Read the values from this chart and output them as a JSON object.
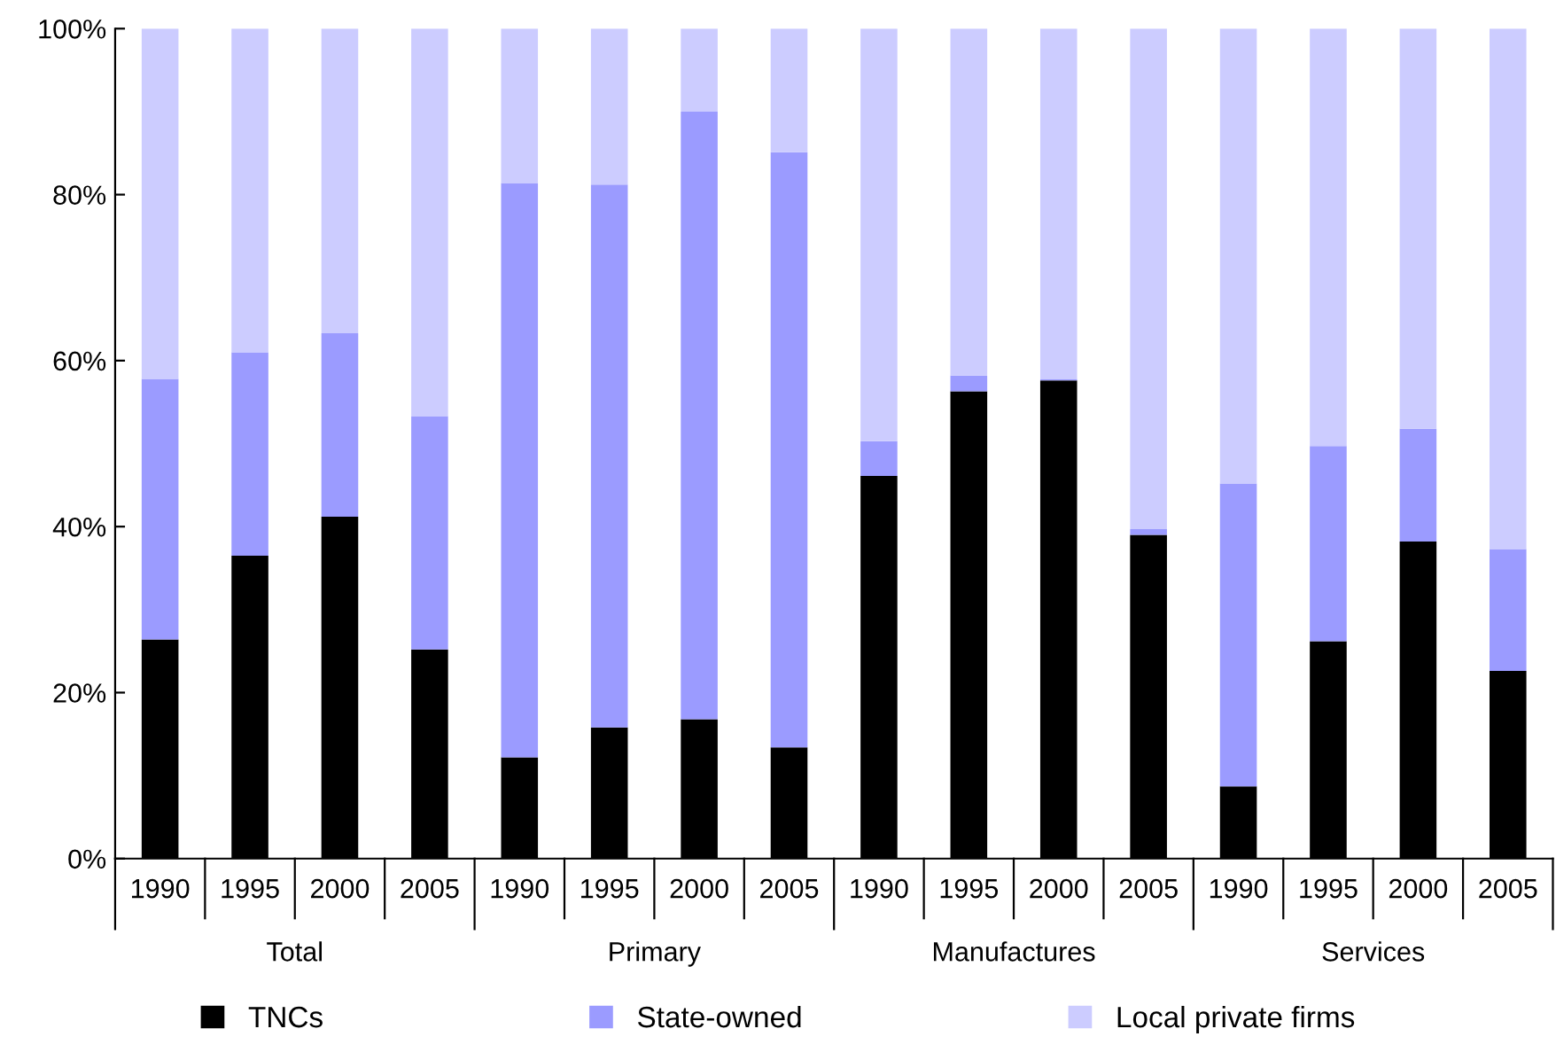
{
  "chart_data": {
    "type": "bar",
    "stacked": true,
    "categories": [
      "1990",
      "1995",
      "2000",
      "2005",
      "1990",
      "1995",
      "2000",
      "2005",
      "1990",
      "1995",
      "2000",
      "2005",
      "1990",
      "1995",
      "2000",
      "2005"
    ],
    "series": [
      {
        "name": "TNCs",
        "color": "#000000",
        "values": [
          26.4,
          36.5,
          41.2,
          25.2,
          12.2,
          15.8,
          16.8,
          13.4,
          46.1,
          56.3,
          57.6,
          39.0,
          8.7,
          26.2,
          38.2,
          22.6
        ]
      },
      {
        "name": "State-owned",
        "color": "#9b9bff",
        "values": [
          31.4,
          24.5,
          22.1,
          28.1,
          69.2,
          65.4,
          73.2,
          71.7,
          4.2,
          1.9,
          0.2,
          0.7,
          36.5,
          23.5,
          13.6,
          14.7
        ]
      },
      {
        "name": "Local private firms",
        "color": "#ccccff",
        "values": [
          42.2,
          39.0,
          36.7,
          46.7,
          18.6,
          18.8,
          10.0,
          14.9,
          49.7,
          41.8,
          42.2,
          60.3,
          54.8,
          50.3,
          48.2,
          62.7
        ]
      }
    ],
    "ylim": [
      0,
      100
    ],
    "yticks": [
      {
        "value": 0,
        "label": "0%"
      },
      {
        "value": 20,
        "label": "20%"
      },
      {
        "value": 40,
        "label": "40%"
      },
      {
        "value": 60,
        "label": "60%"
      },
      {
        "value": 80,
        "label": "80%"
      },
      {
        "value": 100,
        "label": "100%"
      }
    ],
    "annotations": [
      "Total",
      "Primary",
      "Manufactures",
      "Services"
    ],
    "legend": "bottom",
    "grid": false
  }
}
